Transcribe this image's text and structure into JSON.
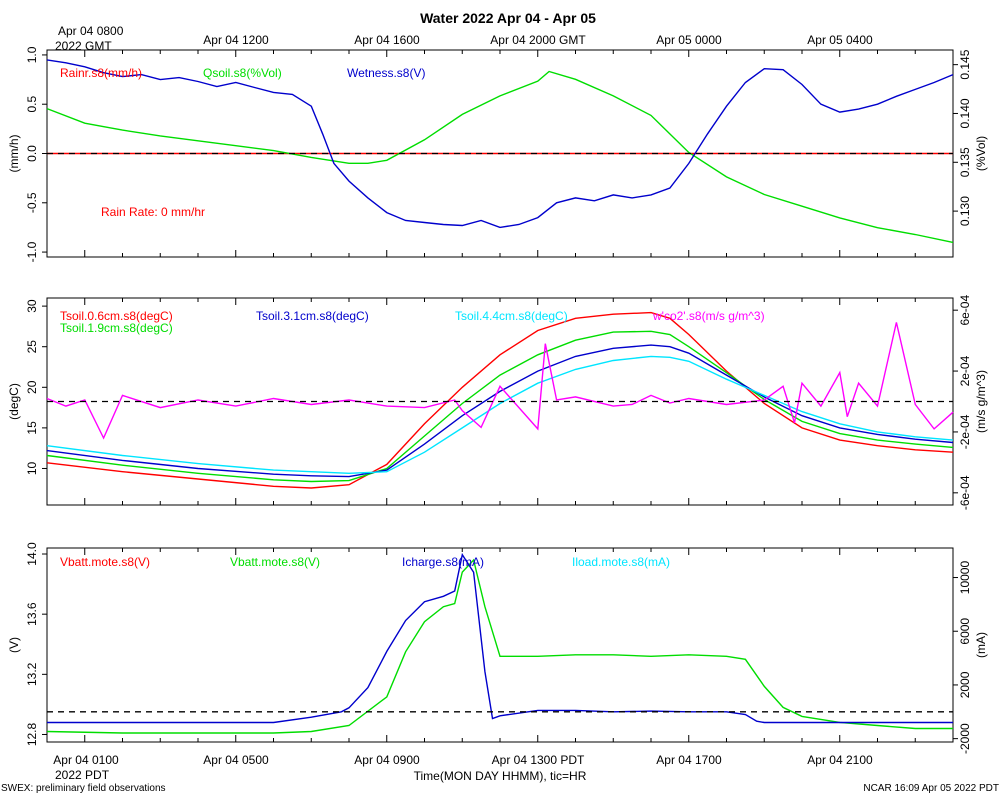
{
  "title": "Water 2022 Apr 04 - Apr 05",
  "time_top_corner": [
    "Apr 04 0800",
    "2022 GMT"
  ],
  "time_top_ticks": [
    "Apr 04 1200",
    "Apr 04 1600",
    "Apr 04 2000 GMT",
    "Apr 05 0000",
    "Apr 05 0400"
  ],
  "time_bottom_ticks": [
    "Apr 04 0100",
    "Apr 04 0500",
    "Apr 04 0900",
    "Apr 04 1300 PDT",
    "Apr 04 1700",
    "Apr 04 2100"
  ],
  "time_bottom_corner": "2022 PDT",
  "xlabel": "Time(MON DAY HHMM), tic=HR",
  "footer_left": "SWEX: preliminary field observations",
  "footer_right": "NCAR 16:09 Apr 05 2022 PDT",
  "colors": {
    "red": "#ff0000",
    "green": "#00dd00",
    "blue": "#0000cc",
    "cyan": "#00e5ff",
    "magenta": "#ff00ff",
    "black": "#000000"
  },
  "chart_data": [
    {
      "type": "line",
      "panel": "water",
      "x_range_hours_pdt": [
        0,
        24
      ],
      "left_axis": {
        "label": "(mm/h)",
        "ylim": [
          -1.05,
          1.05
        ],
        "ticks": [
          "1.0",
          "0.5",
          "0.0",
          "-0.5",
          "-1.0"
        ],
        "tick_values": [
          1.0,
          0.5,
          0.0,
          -0.5,
          -1.0
        ]
      },
      "right_axis": {
        "label": "(%Vol)",
        "ylim": [
          0.1253,
          0.1465
        ],
        "ticks": [
          "0.145",
          "0.140",
          "0.135",
          "0.130"
        ],
        "tick_values": [
          0.145,
          0.14,
          0.135,
          0.13
        ]
      },
      "reference_line": 0.0,
      "annotation": "Rain Rate: 0 mm/hr",
      "legend": [
        "Rainr.s8(mm/h)",
        "Qsoil.s8(%Vol)",
        "Wetness.s8(V)"
      ],
      "series": [
        {
          "name": "Rainr.s8(mm/h)",
          "axis": "left",
          "color": "red",
          "x": [
            0,
            24
          ],
          "values": [
            0,
            0
          ]
        },
        {
          "name": "Qsoil.s8(%Vol)",
          "axis": "right",
          "color": "green",
          "x": [
            0,
            1,
            2,
            3,
            4,
            5,
            6,
            7,
            8,
            8.5,
            9,
            10,
            11,
            12,
            13,
            13.3,
            14,
            15,
            16,
            17,
            18,
            19,
            20,
            21,
            22,
            23,
            24
          ],
          "values": [
            0.1405,
            0.139,
            0.1383,
            0.1377,
            0.1372,
            0.1367,
            0.1362,
            0.1355,
            0.1349,
            0.1349,
            0.1352,
            0.1373,
            0.1399,
            0.1418,
            0.1433,
            0.1443,
            0.1435,
            0.1418,
            0.1398,
            0.136,
            0.1335,
            0.1317,
            0.1305,
            0.1293,
            0.1283,
            0.1276,
            0.1268
          ]
        },
        {
          "name": "Wetness.s8(V)",
          "axis": "left",
          "color": "blue",
          "x": [
            0,
            0.5,
            1,
            1.5,
            2,
            2.5,
            3,
            3.5,
            4,
            4.5,
            5,
            5.5,
            6,
            6.5,
            7,
            7.3,
            7.6,
            8,
            8.5,
            9,
            9.5,
            10,
            10.5,
            11,
            11.5,
            12,
            12.5,
            13,
            13.5,
            14,
            14.5,
            15,
            15.5,
            16,
            16.5,
            17,
            17.5,
            18,
            18.5,
            19,
            19.5,
            20,
            20.5,
            21,
            21.5,
            22,
            22.5,
            23,
            23.5,
            24
          ],
          "values": [
            0.95,
            0.92,
            0.88,
            0.82,
            0.78,
            0.8,
            0.75,
            0.77,
            0.73,
            0.68,
            0.72,
            0.67,
            0.62,
            0.6,
            0.48,
            0.2,
            -0.1,
            -0.28,
            -0.45,
            -0.6,
            -0.68,
            -0.7,
            -0.72,
            -0.73,
            -0.68,
            -0.75,
            -0.72,
            -0.65,
            -0.5,
            -0.45,
            -0.48,
            -0.42,
            -0.45,
            -0.42,
            -0.35,
            -0.1,
            0.2,
            0.48,
            0.72,
            0.86,
            0.85,
            0.7,
            0.5,
            0.42,
            0.45,
            0.5,
            0.58,
            0.65,
            0.72,
            0.8
          ]
        }
      ]
    },
    {
      "type": "line",
      "panel": "soil-temperature",
      "x_range_hours_pdt": [
        0,
        24
      ],
      "left_axis": {
        "label": "(degC)",
        "ylim": [
          5.5,
          31
        ],
        "ticks": [
          "30",
          "25",
          "20",
          "15",
          "10"
        ],
        "tick_values": [
          30,
          25,
          20,
          15,
          10
        ]
      },
      "right_axis": {
        "label": "(m/s g/m^3)",
        "ylim": [
          -0.00068,
          0.00068
        ],
        "ticks": [
          "6e-04",
          "2e-04",
          "-2e-04",
          "-6e-04"
        ],
        "tick_values": [
          0.0006,
          0.0002,
          -0.0002,
          -0.0006
        ]
      },
      "reference_line": 0.0,
      "legend": [
        "Tsoil.0.6cm.s8(degC)",
        "Tsoil.1.9cm.s8(degC)",
        "Tsoil.3.1cm.s8(degC)",
        "Tsoil.4.4cm.s8(degC)",
        "w'co2'.s8(m/s g/m^3)"
      ],
      "series": [
        {
          "name": "Tsoil.0.6cm.s8(degC)",
          "axis": "left",
          "color": "red",
          "x": [
            0,
            2,
            4,
            6,
            7,
            8,
            9,
            10,
            11,
            12,
            13,
            14,
            15,
            16,
            16.5,
            17,
            18,
            19,
            20,
            21,
            22,
            23,
            24
          ],
          "values": [
            10.7,
            9.6,
            8.7,
            7.8,
            7.6,
            8.0,
            10.5,
            15.5,
            20.0,
            24.0,
            27.0,
            28.5,
            29.0,
            29.2,
            28.5,
            26.5,
            22.0,
            18.0,
            15.0,
            13.5,
            12.8,
            12.3,
            12.0
          ]
        },
        {
          "name": "Tsoil.1.9cm.s8(degC)",
          "axis": "left",
          "color": "green",
          "x": [
            0,
            2,
            4,
            6,
            7,
            8,
            9,
            10,
            11,
            12,
            13,
            14,
            15,
            16,
            16.5,
            17,
            18,
            19,
            20,
            21,
            22,
            23,
            24
          ],
          "values": [
            11.6,
            10.4,
            9.4,
            8.6,
            8.4,
            8.5,
            10.0,
            14.0,
            18.0,
            21.5,
            24.0,
            25.8,
            26.8,
            26.9,
            26.5,
            25.0,
            21.8,
            18.5,
            15.8,
            14.3,
            13.5,
            13.0,
            12.6
          ]
        },
        {
          "name": "Tsoil.3.1cm.s8(degC)",
          "axis": "left",
          "color": "blue",
          "x": [
            0,
            2,
            4,
            6,
            7,
            8,
            9,
            10,
            11,
            12,
            13,
            14,
            15,
            16,
            16.5,
            17,
            18,
            19,
            20,
            21,
            22,
            23,
            24
          ],
          "values": [
            12.2,
            11.0,
            10.0,
            9.3,
            9.1,
            9.0,
            9.8,
            13.0,
            16.5,
            19.5,
            22.0,
            23.8,
            24.8,
            25.2,
            25.0,
            24.2,
            21.5,
            18.8,
            16.5,
            15.0,
            14.2,
            13.6,
            13.2
          ]
        },
        {
          "name": "Tsoil.4.4cm.s8(degC)",
          "axis": "left",
          "color": "cyan",
          "x": [
            0,
            2,
            4,
            6,
            7,
            8,
            9,
            10,
            11,
            12,
            13,
            14,
            15,
            16,
            16.5,
            17,
            18,
            19,
            20,
            21,
            22,
            23,
            24
          ],
          "values": [
            12.8,
            11.6,
            10.6,
            9.8,
            9.6,
            9.4,
            9.6,
            12.0,
            15.0,
            18.0,
            20.5,
            22.2,
            23.3,
            23.8,
            23.7,
            23.2,
            21.0,
            19.0,
            17.0,
            15.5,
            14.5,
            13.9,
            13.5
          ]
        },
        {
          "name": "w'co2'.s8(m/s g/m^3)",
          "axis": "right",
          "color": "magenta",
          "x": [
            0,
            0.5,
            1,
            1.5,
            2,
            3,
            4,
            5,
            6,
            7,
            8,
            9,
            10,
            10.8,
            11,
            11.5,
            12,
            13,
            13.2,
            13.5,
            14,
            15,
            15.5,
            16,
            16.5,
            17,
            18,
            19,
            19.5,
            19.8,
            20,
            20.5,
            21,
            21.2,
            21.5,
            22,
            22.5,
            23,
            23.5,
            24
          ],
          "values": [
            2e-05,
            -3e-05,
            1e-05,
            -0.00024,
            4e-05,
            -4e-05,
            1e-05,
            -3e-05,
            2e-05,
            -2e-05,
            1e-05,
            -3e-05,
            -4e-05,
            1e-05,
            -6e-05,
            -0.00017,
            0.0001,
            -0.00018,
            0.00038,
            1e-05,
            3e-05,
            -3e-05,
            -2e-05,
            4e-05,
            -1e-05,
            2e-05,
            -2e-05,
            1e-05,
            0.0001,
            -0.00014,
            0.00012,
            -3e-05,
            0.00019,
            -0.0001,
            0.00012,
            -3e-05,
            0.00052,
            -2e-05,
            -0.00018,
            -7e-05
          ]
        }
      ]
    },
    {
      "type": "line",
      "panel": "power",
      "x_range_hours_pdt": [
        0,
        24
      ],
      "left_axis": {
        "label": "(V)",
        "ylim": [
          12.75,
          14.04
        ],
        "ticks": [
          "14.0",
          "13.6",
          "13.2",
          "12.8"
        ],
        "tick_values": [
          14.0,
          13.6,
          13.2,
          12.8
        ]
      },
      "right_axis": {
        "label": "(mA)",
        "ylim": [
          -2250,
          12200
        ],
        "ticks": [
          "10000",
          "6000",
          "2000",
          "-2000"
        ],
        "tick_values": [
          10000,
          6000,
          2000,
          -2000
        ]
      },
      "reference_line": 0,
      "legend": [
        "Vbatt.mote.s8(V)",
        "Vbatt.mote.s8(V)",
        "Icharge.s8(mA)",
        "Iload.mote.s8(mA)"
      ],
      "series": [
        {
          "name": "Vbatt.mote.s8(V)",
          "axis": "left",
          "color": "green",
          "x": [
            0,
            2,
            4,
            6,
            7,
            8,
            9,
            9.5,
            10,
            10.5,
            10.8,
            11,
            11.3,
            11.6,
            12,
            13,
            14,
            15,
            16,
            17,
            18,
            18.5,
            19,
            19.5,
            20,
            21,
            22,
            23,
            24
          ],
          "values": [
            12.82,
            12.81,
            12.81,
            12.81,
            12.82,
            12.86,
            13.05,
            13.35,
            13.55,
            13.65,
            13.67,
            13.88,
            13.96,
            13.65,
            13.32,
            13.32,
            13.33,
            13.33,
            13.32,
            13.33,
            13.32,
            13.3,
            13.12,
            12.98,
            12.92,
            12.88,
            12.86,
            12.84,
            12.84
          ]
        },
        {
          "name": "Icharge.s8(mA)",
          "axis": "right",
          "color": "blue",
          "x": [
            0,
            2,
            4,
            6,
            7,
            7.8,
            8,
            8.5,
            9,
            9.5,
            10,
            10.5,
            10.8,
            11,
            11.3,
            11.6,
            11.8,
            12,
            13,
            14,
            15,
            16,
            17,
            18,
            18.5,
            18.8,
            19,
            19.5,
            20,
            21,
            22,
            23,
            24
          ],
          "values": [
            -800,
            -800,
            -800,
            -800,
            -400,
            0,
            300,
            1800,
            4500,
            6800,
            8200,
            8600,
            9000,
            11700,
            10400,
            3000,
            -500,
            -300,
            100,
            100,
            0,
            50,
            0,
            0,
            -200,
            -700,
            -800,
            -800,
            -800,
            -800,
            -800,
            -800,
            -800
          ]
        }
      ]
    }
  ]
}
